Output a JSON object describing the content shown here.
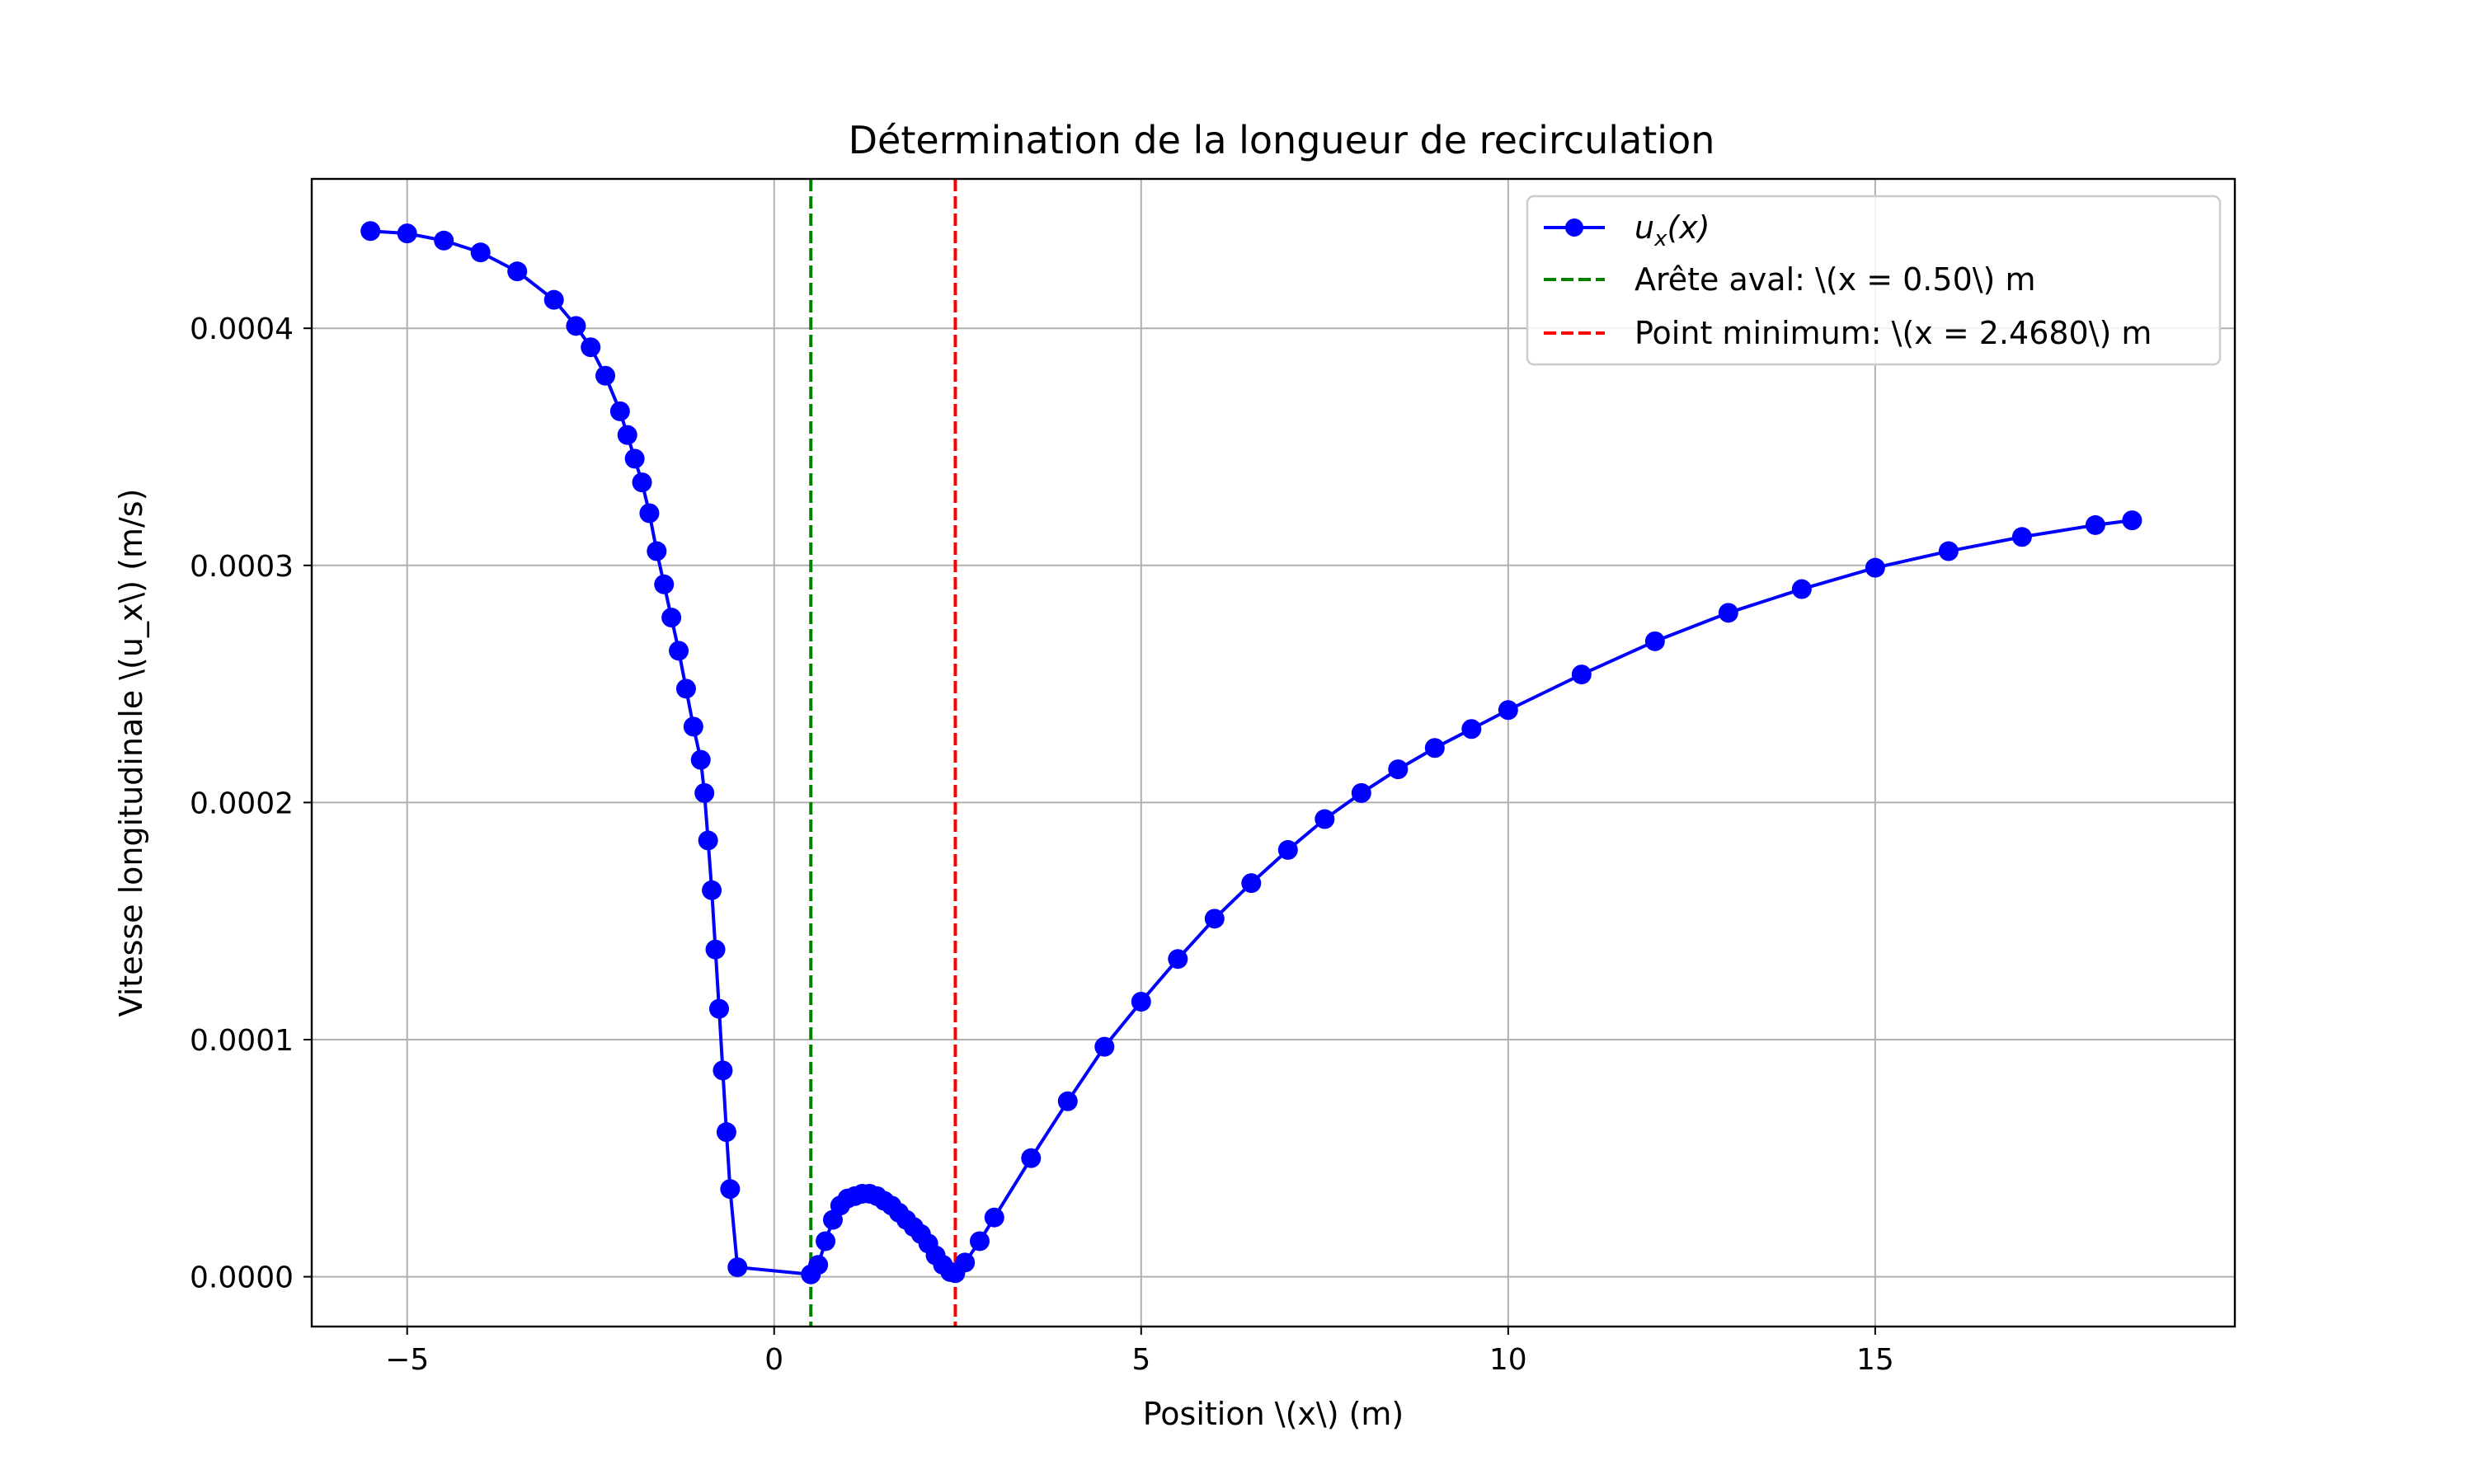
{
  "chart_data": {
    "type": "line",
    "title": "Détermination de la longueur de recirculation",
    "xlabel": "Position \\(x\\) (m)",
    "ylabel": "Vitesse longitudinale \\(u_x\\) (m/s)",
    "xlim": [
      -6.3,
      19.9
    ],
    "ylim": [
      -2.1e-05,
      0.000463
    ],
    "grid": true,
    "legend_position": "top-right",
    "xticks": [
      -5,
      0,
      5,
      10,
      15
    ],
    "xtick_labels": [
      "−5",
      "0",
      "5",
      "10",
      "15"
    ],
    "yticks": [
      0,
      0.0001,
      0.0002,
      0.0003,
      0.0004
    ],
    "ytick_labels": [
      "0.0000",
      "0.0001",
      "0.0002",
      "0.0003",
      "0.0004"
    ],
    "series": [
      {
        "name": "u_x(x)",
        "label_main": "u",
        "label_sub": "x",
        "label_tail": "(x)",
        "color": "#0000ff",
        "marker": "circle",
        "x": [
          -5.5,
          -5.0,
          -4.5,
          -4.0,
          -3.5,
          -3.0,
          -2.7,
          -2.5,
          -2.3,
          -2.1,
          -2.0,
          -1.9,
          -1.8,
          -1.7,
          -1.6,
          -1.5,
          -1.4,
          -1.3,
          -1.2,
          -1.1,
          -1.0,
          -0.95,
          -0.9,
          -0.85,
          -0.8,
          -0.75,
          -0.7,
          -0.65,
          -0.6,
          -0.5,
          0.5,
          0.6,
          0.7,
          0.8,
          0.9,
          1.0,
          1.1,
          1.2,
          1.3,
          1.4,
          1.5,
          1.6,
          1.7,
          1.8,
          1.9,
          2.0,
          2.1,
          2.2,
          2.3,
          2.4,
          2.468,
          2.6,
          2.8,
          3.0,
          3.5,
          4.0,
          4.5,
          5.0,
          5.5,
          6.0,
          6.5,
          7.0,
          7.5,
          8.0,
          8.5,
          9.0,
          9.5,
          10.0,
          11.0,
          12.0,
          13.0,
          14.0,
          15.0,
          16.0,
          17.0,
          18.0,
          18.5
        ],
        "y": [
          0.000441,
          0.00044,
          0.000437,
          0.000432,
          0.000424,
          0.000412,
          0.000401,
          0.000392,
          0.00038,
          0.000365,
          0.000355,
          0.000345,
          0.000335,
          0.000322,
          0.000306,
          0.000292,
          0.000278,
          0.000264,
          0.000248,
          0.000232,
          0.000218,
          0.000204,
          0.000184,
          0.000163,
          0.000138,
          0.000113,
          8.7e-05,
          6.1e-05,
          3.7e-05,
          4e-06,
          1e-06,
          5e-06,
          1.5e-05,
          2.4e-05,
          3e-05,
          3.3e-05,
          3.4e-05,
          3.5e-05,
          3.5e-05,
          3.4e-05,
          3.2e-05,
          3e-05,
          2.7e-05,
          2.4e-05,
          2.1e-05,
          1.8e-05,
          1.4e-05,
          9e-06,
          5e-06,
          2e-06,
          1.5e-06,
          6e-06,
          1.5e-05,
          2.5e-05,
          5e-05,
          7.4e-05,
          9.7e-05,
          0.000116,
          0.000134,
          0.000151,
          0.000166,
          0.00018,
          0.000193,
          0.000204,
          0.000214,
          0.000223,
          0.000231,
          0.000239,
          0.000254,
          0.000268,
          0.00028,
          0.00029,
          0.000299,
          0.000306,
          0.000312,
          0.000317,
          0.000319
        ]
      }
    ],
    "vlines": [
      {
        "label": "Arête aval: \\(x = 0.50\\) m",
        "x": 0.5,
        "color": "#008000",
        "style": "dashed"
      },
      {
        "label": "Point minimum: \\(x = 2.4680\\) m",
        "x": 2.468,
        "color": "#ff0000",
        "style": "dashed"
      }
    ]
  }
}
